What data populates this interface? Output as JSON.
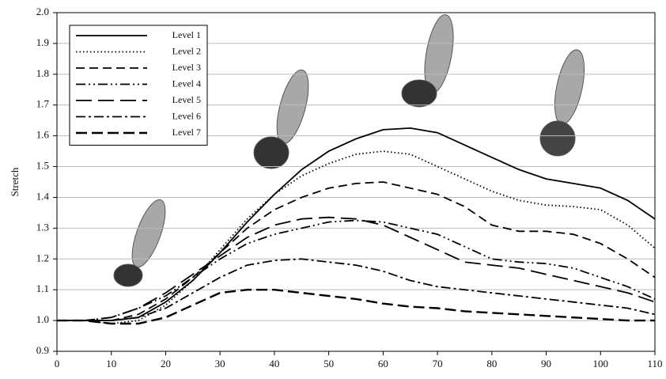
{
  "chart_data": {
    "type": "line",
    "y_label": "Stretch",
    "x": [
      0,
      5,
      10,
      15,
      20,
      25,
      30,
      35,
      40,
      45,
      50,
      55,
      60,
      65,
      70,
      75,
      80,
      85,
      90,
      95,
      100,
      105,
      110
    ],
    "xlim": [
      0,
      110
    ],
    "xticks": [
      0,
      10,
      20,
      30,
      40,
      50,
      60,
      70,
      80,
      90,
      100,
      110
    ],
    "ylim": [
      0.9,
      2.0
    ],
    "yticks": [
      0.9,
      {
        "value": 1.0,
        "label": "1.0"
      },
      1.1,
      1.2,
      1.3,
      1.4,
      1.5,
      1.6,
      1.7,
      1.8,
      1.9,
      {
        "value": 2.0,
        "label": "2.0"
      }
    ],
    "grid": true,
    "legend": "upper left",
    "series": [
      {
        "name": "Level 1",
        "color": "#000000",
        "dash": "solid",
        "values": [
          1.0,
          1.0,
          1.0,
          1.01,
          1.06,
          1.13,
          1.22,
          1.32,
          1.41,
          1.49,
          1.55,
          1.59,
          1.62,
          1.625,
          1.61,
          1.57,
          1.53,
          1.49,
          1.46,
          1.445,
          1.43,
          1.39,
          1.33
        ]
      },
      {
        "name": "Level 2",
        "color": "#000000",
        "dash": "dotted",
        "values": [
          1.0,
          1.0,
          0.99,
          1.0,
          1.05,
          1.13,
          1.23,
          1.33,
          1.41,
          1.47,
          1.51,
          1.54,
          1.55,
          1.54,
          1.5,
          1.46,
          1.42,
          1.39,
          1.375,
          1.37,
          1.36,
          1.31,
          1.235
        ]
      },
      {
        "name": "Level 3",
        "color": "#000000",
        "dash": "dashed",
        "values": [
          1.0,
          1.0,
          1.0,
          1.02,
          1.07,
          1.14,
          1.22,
          1.3,
          1.36,
          1.4,
          1.43,
          1.445,
          1.45,
          1.43,
          1.41,
          1.37,
          1.31,
          1.29,
          1.29,
          1.28,
          1.25,
          1.2,
          1.14
        ]
      },
      {
        "name": "Level 4",
        "color": "#000000",
        "dash": "dashdotdot",
        "values": [
          1.0,
          1.0,
          1.01,
          1.04,
          1.08,
          1.14,
          1.2,
          1.25,
          1.28,
          1.3,
          1.32,
          1.325,
          1.32,
          1.3,
          1.28,
          1.24,
          1.2,
          1.19,
          1.185,
          1.17,
          1.14,
          1.11,
          1.07
        ]
      },
      {
        "name": "Level 5",
        "color": "#000000",
        "dash": "longdash",
        "values": [
          1.0,
          1.0,
          1.01,
          1.04,
          1.09,
          1.15,
          1.21,
          1.27,
          1.31,
          1.33,
          1.335,
          1.33,
          1.31,
          1.27,
          1.23,
          1.19,
          1.18,
          1.17,
          1.15,
          1.13,
          1.11,
          1.09,
          1.06
        ]
      },
      {
        "name": "Level 6",
        "color": "#000000",
        "dash": "dashdot",
        "values": [
          1.0,
          1.0,
          1.0,
          1.01,
          1.04,
          1.09,
          1.14,
          1.18,
          1.195,
          1.2,
          1.19,
          1.18,
          1.16,
          1.13,
          1.11,
          1.1,
          1.09,
          1.08,
          1.07,
          1.06,
          1.05,
          1.04,
          1.02
        ]
      },
      {
        "name": "Level 7",
        "color": "#000000",
        "dash": "heavydash",
        "values": [
          1.0,
          1.0,
          0.99,
          0.99,
          1.01,
          1.05,
          1.09,
          1.1,
          1.1,
          1.09,
          1.08,
          1.07,
          1.055,
          1.045,
          1.04,
          1.03,
          1.025,
          1.02,
          1.015,
          1.01,
          1.005,
          1.0,
          1.0
        ]
      }
    ]
  }
}
